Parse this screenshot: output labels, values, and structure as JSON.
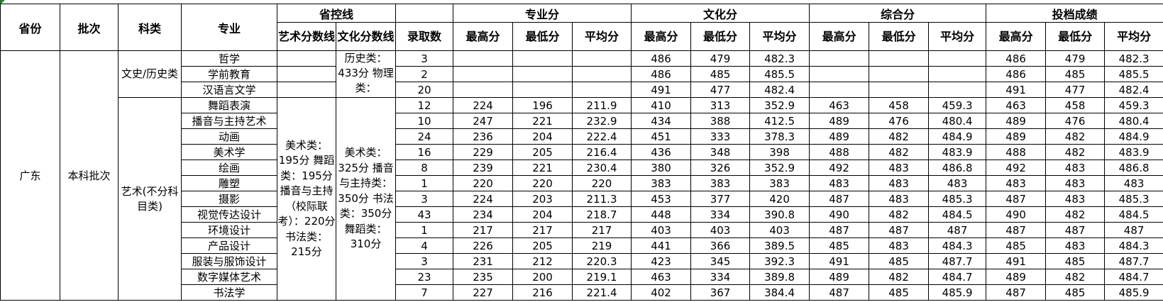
{
  "header": {
    "province": "省份",
    "batch": "批次",
    "category": "科类",
    "major": "专业",
    "control_line": "省控线",
    "art_line": "艺术分数线",
    "culture_line": "文化分数线",
    "admitted": "录取数",
    "groups": [
      "专业分",
      "文化分",
      "综合分",
      "投档成绩"
    ],
    "sub": [
      "最高分",
      "最低分",
      "平均分"
    ]
  },
  "province": "广东",
  "batch": "本科批次",
  "categories": [
    {
      "name": "文史/历史类",
      "art_line": "",
      "culture_line": "历史类：433分 物理类："
    },
    {
      "name": "艺术(不分科目类)",
      "art_line": "美术类：195分 舞蹈类：195分 播音与主持（校际联考）：220分 书法类：215分",
      "culture_line": "美术类：325分 播音与主持类：350分 书法类：350分 舞蹈类：310分"
    }
  ],
  "rows": [
    {
      "cat": 0,
      "major": "哲学",
      "n": "3",
      "zy": [
        "",
        "",
        ""
      ],
      "wh": [
        "486",
        "479",
        "482.3"
      ],
      "zh": [
        "",
        "",
        ""
      ],
      "td": [
        "486",
        "479",
        "482.3"
      ]
    },
    {
      "cat": 0,
      "major": "学前教育",
      "n": "2",
      "zy": [
        "",
        "",
        ""
      ],
      "wh": [
        "486",
        "485",
        "485.5"
      ],
      "zh": [
        "",
        "",
        ""
      ],
      "td": [
        "486",
        "485",
        "485.5"
      ]
    },
    {
      "cat": 0,
      "major": "汉语言文学",
      "n": "20",
      "zy": [
        "",
        "",
        ""
      ],
      "wh": [
        "491",
        "477",
        "482.4"
      ],
      "zh": [
        "",
        "",
        ""
      ],
      "td": [
        "491",
        "477",
        "482.4"
      ]
    },
    {
      "cat": 1,
      "major": "舞蹈表演",
      "n": "12",
      "zy": [
        "224",
        "196",
        "211.9"
      ],
      "wh": [
        "410",
        "313",
        "352.9"
      ],
      "zh": [
        "463",
        "458",
        "459.3"
      ],
      "td": [
        "463",
        "458",
        "459.3"
      ]
    },
    {
      "cat": 1,
      "major": "播音与主持艺术",
      "n": "10",
      "zy": [
        "247",
        "221",
        "232.9"
      ],
      "wh": [
        "434",
        "388",
        "412.5"
      ],
      "zh": [
        "489",
        "476",
        "480.4"
      ],
      "td": [
        "489",
        "476",
        "480.4"
      ]
    },
    {
      "cat": 1,
      "major": "动画",
      "n": "24",
      "zy": [
        "236",
        "204",
        "222.4"
      ],
      "wh": [
        "451",
        "333",
        "378.3"
      ],
      "zh": [
        "489",
        "482",
        "484.9"
      ],
      "td": [
        "489",
        "482",
        "484.9"
      ]
    },
    {
      "cat": 1,
      "major": "美术学",
      "n": "16",
      "zy": [
        "229",
        "205",
        "216.4"
      ],
      "wh": [
        "436",
        "348",
        "398"
      ],
      "zh": [
        "488",
        "482",
        "483.9"
      ],
      "td": [
        "488",
        "482",
        "483.9"
      ]
    },
    {
      "cat": 1,
      "major": "绘画",
      "n": "8",
      "zy": [
        "239",
        "221",
        "230.4"
      ],
      "wh": [
        "380",
        "326",
        "352.9"
      ],
      "zh": [
        "492",
        "483",
        "486.8"
      ],
      "td": [
        "492",
        "483",
        "486.8"
      ]
    },
    {
      "cat": 1,
      "major": "雕塑",
      "n": "1",
      "zy": [
        "220",
        "220",
        "220"
      ],
      "wh": [
        "383",
        "383",
        "383"
      ],
      "zh": [
        "483",
        "483",
        "483"
      ],
      "td": [
        "483",
        "483",
        "483"
      ]
    },
    {
      "cat": 1,
      "major": "摄影",
      "n": "3",
      "zy": [
        "224",
        "203",
        "211.3"
      ],
      "wh": [
        "453",
        "377",
        "420"
      ],
      "zh": [
        "487",
        "483",
        "485.3"
      ],
      "td": [
        "487",
        "483",
        "485.3"
      ]
    },
    {
      "cat": 1,
      "major": "视觉传达设计",
      "n": "43",
      "zy": [
        "234",
        "204",
        "218.7"
      ],
      "wh": [
        "448",
        "334",
        "390.8"
      ],
      "zh": [
        "490",
        "482",
        "484.5"
      ],
      "td": [
        "490",
        "482",
        "484.5"
      ]
    },
    {
      "cat": 1,
      "major": "环境设计",
      "n": "1",
      "zy": [
        "217",
        "217",
        "217"
      ],
      "wh": [
        "403",
        "403",
        "403"
      ],
      "zh": [
        "487",
        "487",
        "487"
      ],
      "td": [
        "487",
        "487",
        "487"
      ]
    },
    {
      "cat": 1,
      "major": "产品设计",
      "n": "4",
      "zy": [
        "226",
        "205",
        "219"
      ],
      "wh": [
        "441",
        "366",
        "389.5"
      ],
      "zh": [
        "485",
        "483",
        "484.3"
      ],
      "td": [
        "485",
        "483",
        "484.3"
      ]
    },
    {
      "cat": 1,
      "major": "服装与服饰设计",
      "n": "3",
      "zy": [
        "231",
        "212",
        "220.3"
      ],
      "wh": [
        "423",
        "345",
        "392.3"
      ],
      "zh": [
        "491",
        "485",
        "487.7"
      ],
      "td": [
        "491",
        "485",
        "487.7"
      ]
    },
    {
      "cat": 1,
      "major": "数字媒体艺术",
      "n": "23",
      "zy": [
        "235",
        "200",
        "219.1"
      ],
      "wh": [
        "463",
        "334",
        "389.8"
      ],
      "zh": [
        "489",
        "482",
        "484.7"
      ],
      "td": [
        "489",
        "482",
        "484.7"
      ]
    },
    {
      "cat": 1,
      "major": "书法学",
      "n": "7",
      "zy": [
        "227",
        "216",
        "221.4"
      ],
      "wh": [
        "402",
        "367",
        "384.4"
      ],
      "zh": [
        "487",
        "485",
        "485.9"
      ],
      "td": [
        "487",
        "485",
        "485.9"
      ]
    }
  ]
}
